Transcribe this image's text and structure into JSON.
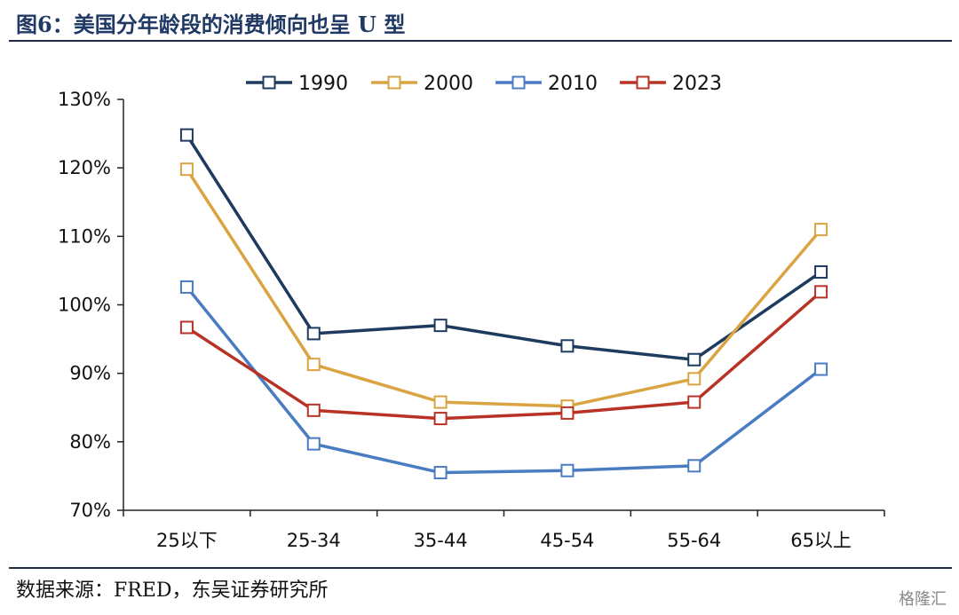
{
  "header": {
    "title": "图6：美国分年龄段的消费倾向也呈 U 型"
  },
  "footer": {
    "source": "数据来源：FRED，东吴证券研究所",
    "watermark": "格隆汇"
  },
  "chart_data": {
    "type": "line",
    "title": "",
    "xlabel": "",
    "ylabel": "",
    "categories": [
      "25以下",
      "25-34",
      "35-44",
      "45-54",
      "55-64",
      "65以上"
    ],
    "ylim": [
      70,
      130
    ],
    "yticks": [
      70,
      80,
      90,
      100,
      110,
      120,
      130
    ],
    "ytick_labels": [
      "70%",
      "80%",
      "90%",
      "100%",
      "110%",
      "120%",
      "130%"
    ],
    "legend_position": "top-center",
    "grid": false,
    "marker": "hollow-square",
    "series": [
      {
        "name": "1990",
        "color": "#1f3a5f",
        "values": [
          124.8,
          95.8,
          97.0,
          94.0,
          92.0,
          104.8
        ]
      },
      {
        "name": "2000",
        "color": "#d9a441",
        "values": [
          119.8,
          91.3,
          85.8,
          85.2,
          89.2,
          111.0
        ]
      },
      {
        "name": "2010",
        "color": "#4a7cc2",
        "values": [
          102.6,
          79.7,
          75.5,
          75.8,
          76.5,
          90.6
        ]
      },
      {
        "name": "2023",
        "color": "#b83226",
        "values": [
          96.7,
          84.6,
          83.4,
          84.2,
          85.8,
          101.9
        ]
      }
    ]
  }
}
